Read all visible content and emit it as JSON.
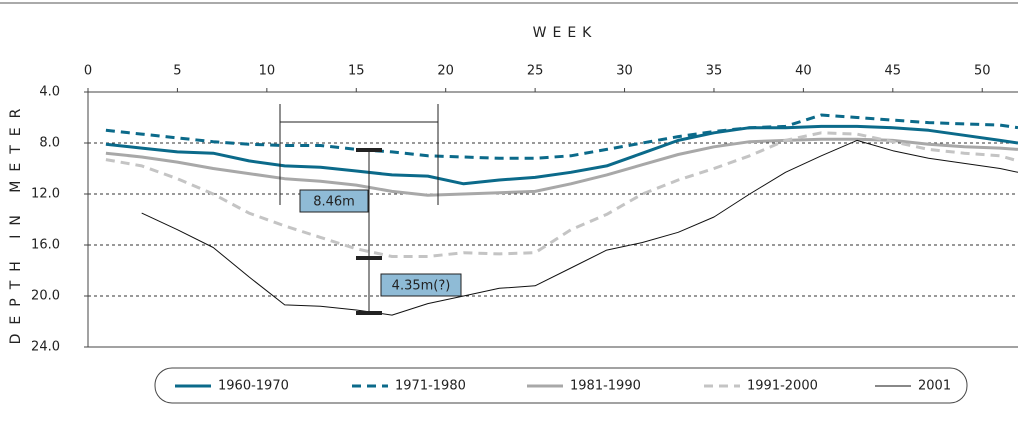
{
  "chart_data": {
    "type": "line",
    "title": "WEEK",
    "y_label": "DEPTH IN METER",
    "xlim": [
      0,
      52
    ],
    "xticks": [
      0,
      5,
      10,
      15,
      20,
      25,
      30,
      35,
      40,
      45,
      50
    ],
    "ylim": [
      4,
      24
    ],
    "y_reversed": true,
    "yticks": [
      {
        "value": 4,
        "label": "4.0"
      },
      {
        "value": 8,
        "label": "8.0"
      },
      {
        "value": 12,
        "label": "12.0"
      },
      {
        "value": 16,
        "label": "16.0"
      },
      {
        "value": 20,
        "label": "20.0"
      },
      {
        "value": 24,
        "label": "24.0"
      }
    ],
    "grid": true,
    "x": [
      1,
      3,
      5,
      7,
      9,
      11,
      13,
      15,
      17,
      19,
      21,
      23,
      25,
      27,
      29,
      31,
      33,
      35,
      37,
      39,
      41,
      43,
      45,
      47,
      49,
      51,
      52
    ],
    "series": [
      {
        "name": "1960-1970",
        "color": "#0b6a8a",
        "dashed": false,
        "width": 3,
        "values": [
          8.1,
          8.4,
          8.7,
          8.8,
          9.4,
          9.8,
          9.9,
          10.2,
          10.5,
          10.6,
          11.2,
          10.9,
          10.7,
          10.3,
          9.8,
          8.8,
          7.8,
          7.2,
          6.8,
          6.8,
          6.7,
          6.7,
          6.8,
          7.0,
          7.4,
          7.8,
          8.0
        ]
      },
      {
        "name": "1971-1980",
        "color": "#0b6a8a",
        "dashed": true,
        "width": 3,
        "values": [
          7.0,
          7.3,
          7.6,
          7.9,
          8.1,
          8.2,
          8.2,
          8.5,
          8.7,
          9.0,
          9.1,
          9.2,
          9.2,
          9.0,
          8.5,
          8.0,
          7.5,
          7.1,
          6.8,
          6.7,
          5.8,
          6.0,
          6.2,
          6.4,
          6.5,
          6.6,
          6.8
        ]
      },
      {
        "name": "1981-1990",
        "color": "#a8a8a8",
        "dashed": false,
        "width": 3,
        "values": [
          8.8,
          9.1,
          9.5,
          10.0,
          10.4,
          10.8,
          11.0,
          11.3,
          11.8,
          12.1,
          12.0,
          11.9,
          11.8,
          11.2,
          10.5,
          9.7,
          8.9,
          8.3,
          7.9,
          7.8,
          7.7,
          7.7,
          7.8,
          8.1,
          8.3,
          8.4,
          8.5
        ]
      },
      {
        "name": "1991-2000",
        "color": "#c4c4c4",
        "dashed": true,
        "width": 3,
        "values": [
          9.3,
          9.8,
          10.8,
          12.0,
          13.5,
          14.5,
          15.4,
          16.3,
          16.9,
          16.9,
          16.6,
          16.7,
          16.6,
          14.8,
          13.6,
          12.0,
          10.9,
          10.0,
          9.0,
          7.8,
          7.2,
          7.3,
          7.9,
          8.5,
          8.8,
          9.0,
          9.4
        ]
      },
      {
        "name": "2001",
        "color": "#111111",
        "dashed": false,
        "width": 1,
        "values": [
          null,
          13.5,
          14.8,
          16.2,
          18.5,
          20.7,
          20.8,
          21.1,
          21.5,
          20.6,
          20.0,
          19.4,
          19.2,
          17.8,
          16.4,
          15.8,
          15.0,
          13.8,
          12.0,
          10.3,
          9.0,
          7.8,
          8.6,
          9.2,
          9.6,
          10.0,
          10.3
        ]
      }
    ],
    "annotations": [
      "8.46m",
      "4.35m(?)"
    ]
  }
}
